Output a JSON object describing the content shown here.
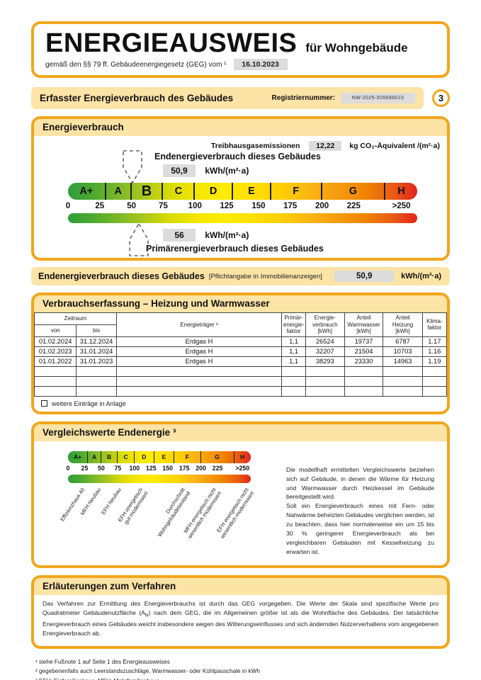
{
  "colors": {
    "accent": "#F2A61B",
    "panel_fill": "#FCE3A6",
    "value_box": "#DCDCDC",
    "scale_gradient": [
      "#2E9E3C 0%",
      "#52AB2D 8%",
      "#7FB929 15%",
      "#ABC81D 22%",
      "#D8DB00 29%",
      "#F4E600 37%",
      "#FFEC00 45%",
      "#FFDF00 53%",
      "#FECF00 61%",
      "#FBB614 69%",
      "#F59C0E 77%",
      "#F08300 85%",
      "#E95C15 93%",
      "#E2231A 100%"
    ]
  },
  "header": {
    "title": "ENERGIEAUSWEIS",
    "subtitle": "für Wohngebäude",
    "law_text": "gemäß den §§ 79 ff. Gebäudeenergiegesetz (GEG) vom ¹",
    "date": "16.10.2023"
  },
  "section_bar": {
    "title": "Erfasster Energieverbrauch des Gebäudes",
    "registry_label": "Registriernummer:",
    "registry_number": "NW-2025-005688023",
    "page_number": "3"
  },
  "energy": {
    "title": "Energieverbrauch",
    "ghg_label": "Treibhausgasemissionen",
    "ghg_value": "12,22",
    "ghg_unit": "kg CO₂-Äquivalent /(m²·a)",
    "final_label": "Endenergieverbrauch dieses Gebäudes",
    "final_value": "50,9",
    "final_unit": "kWh/(m²·a)",
    "primary_value": "56",
    "primary_unit": "kWh/(m²·a)",
    "primary_label": "Primärenergieverbrauch dieses Gebäudes"
  },
  "scale": {
    "axis_max": 275,
    "classes": [
      {
        "label": "A+",
        "max": 30
      },
      {
        "label": "A",
        "max": 50
      },
      {
        "label": "B",
        "max": 75
      },
      {
        "label": "C",
        "max": 100
      },
      {
        "label": "D",
        "max": 130
      },
      {
        "label": "E",
        "max": 160
      },
      {
        "label": "F",
        "max": 200
      },
      {
        "label": "G",
        "max": 250
      },
      {
        "label": "H",
        "max": 275
      }
    ],
    "ticks": [
      "0",
      "25",
      "50",
      "75",
      "100",
      "125",
      "150",
      "175",
      "200",
      "225",
      ">250"
    ],
    "highlight_class": "B",
    "final_energy_value": 50.9,
    "primary_energy_value": 56
  },
  "summary_bar": {
    "label": "Endenergieverbrauch dieses Gebäudes",
    "note": "[Pflichtangabe in Immobilienanzeigen]",
    "value": "50,9",
    "unit": "kWh/(m²·a)"
  },
  "table": {
    "title": "Verbrauchserfassung – Heizung und Warmwasser",
    "headers": {
      "zeitraum": "Zeitraum",
      "von": "von",
      "bis": "bis",
      "energietraeger": "Energieträger ²",
      "primaerfaktor": "Primär-\nenergie-\nfaktor",
      "verbrauch": "Energie-\nverbrauch\n[kWh]",
      "warmwasser": "Anteil\nWarmwasser\n[kWh]",
      "heizung": "Anteil\nHeizung\n[kWh]",
      "klimafaktor": "Klima-\nfaktor"
    },
    "rows": [
      [
        "01.02.2024",
        "31.12.2024",
        "Erdgas H",
        "1,1",
        "26524",
        "19737",
        "6787",
        "1.17"
      ],
      [
        "01.02.2023",
        "31.01.2024",
        "Erdgas H",
        "1,1",
        "32207",
        "21504",
        "10703",
        "1.16"
      ],
      [
        "01.01.2022",
        "31.01.2023",
        "Erdgas H",
        "1,1",
        "38293",
        "23330",
        "14963",
        "1.19"
      ]
    ],
    "empty_rows": 3,
    "checkbox_label": "weitere Einträge in Anlage"
  },
  "comparison": {
    "title": "Vergleichswerte Endenergie ³",
    "labels": [
      {
        "text": "Effizienzhaus 40",
        "percent": 6
      },
      {
        "text": "MFH Neubau",
        "percent": 15
      },
      {
        "text": "EFH Neubau",
        "percent": 26
      },
      {
        "text": "EFH energetisch\ngut modernisiert",
        "percent": 38
      },
      {
        "text": "Durchschnitt\nWohngebäudebestand",
        "percent": 61
      },
      {
        "text": "MFH energetisch nicht\nwesentlich modernisiert",
        "percent": 78
      },
      {
        "text": "EFH energetisch nicht\nwesentlich modernisiert",
        "percent": 96
      }
    ],
    "text": "Die modellhaft ermittelten Vergleichswerte beziehen sich auf Gebäude, in denen die Wärme für Heizung und Warmwasser durch Heizkessel im Gebäude bereitgestellt wird.\nSoll ein Energieverbrauch eines mit Fern- oder Nahwärme beheizten Gebäudes verglichen werden, ist zu beachten, dass hier normalerweise ein um 15 bis 30 % geringerer Energieverbrauch als bei vergleichbaren Gebäuden mit Kesselheizung zu erwarten ist."
  },
  "explanations": {
    "title": "Erläuterungen zum Verfahren",
    "text_pre": "Das Verfahren zur Ermittlung des Energieverbrauchs ist durch das GEG vorgegeben. Die Werte der Skala sind spezifische Werte pro Quadratmeter Gebäudenutzfläche (A",
    "text_sub": "N",
    "text_post": ") nach dem GEG, die im Allgemeinen größer ist als die Wohnfläche des Gebäudes. Der tatsächliche Energieverbrauch eines Gebäudes weicht insbesondere wegen des Witterungseinflusses und sich ändernden Nutzerverhaltens vom angegebenen Energieverbrauch ab."
  },
  "footnotes": [
    "¹ siehe Fußnote 1 auf Seite 1 des Energieausweises",
    "² gegebenenfalls auch Leerstandszuschläge, Warmwasser- oder Kühlpauschale in kWh",
    "³ EFH: Einfamilienhaus, MFH: Mehrfamilienhaus"
  ]
}
